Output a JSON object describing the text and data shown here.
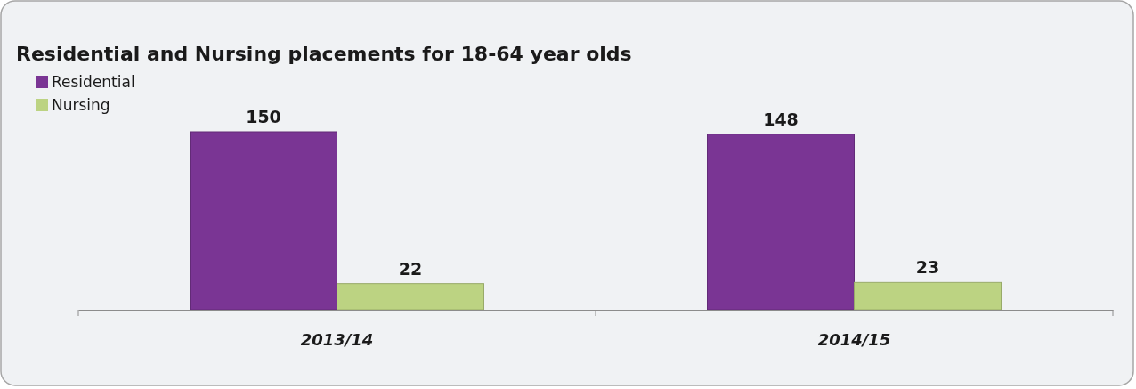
{
  "chart_data": {
    "type": "bar",
    "title": "Residential and Nursing placements for 18-64 year olds",
    "categories": [
      "2013/14",
      "2014/15"
    ],
    "series": [
      {
        "name": "Residential",
        "color": "#7a3594",
        "values": [
          150,
          148
        ]
      },
      {
        "name": "Nursing",
        "color": "#bcd382",
        "values": [
          22,
          23
        ]
      }
    ],
    "data_labels": true,
    "legend": "top left"
  }
}
